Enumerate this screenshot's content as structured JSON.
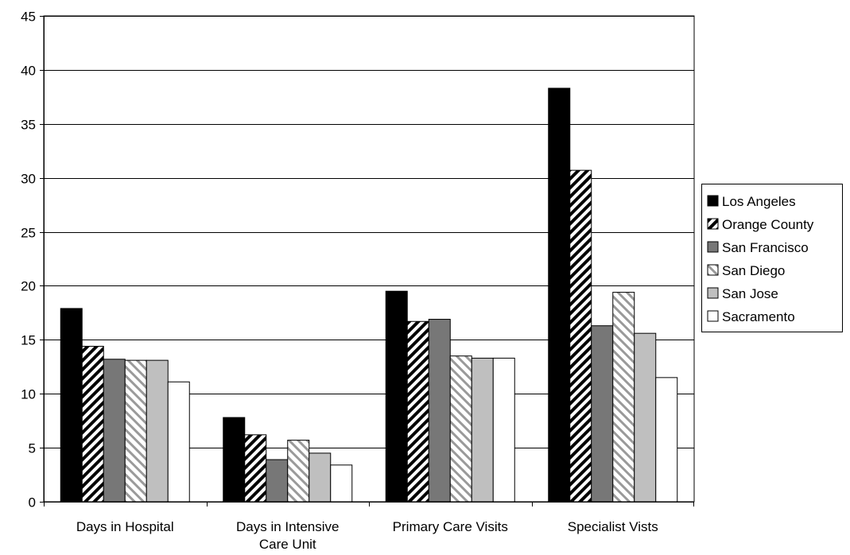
{
  "chart_data": {
    "type": "bar",
    "title": "",
    "xlabel": "",
    "ylabel": "",
    "ylim": [
      0,
      45
    ],
    "ytick_step": 5,
    "yticks": [
      "0",
      "5",
      "10",
      "15",
      "20",
      "25",
      "30",
      "35",
      "40",
      "45"
    ],
    "grid": true,
    "legend_position": "right",
    "categories": [
      [
        "Days in Hospital"
      ],
      [
        "Days in Intensive",
        "Care Unit"
      ],
      [
        "Primary Care Visits"
      ],
      [
        "Specialist Vists"
      ]
    ],
    "series": [
      {
        "name": "Los Angeles",
        "fill": "solid-black",
        "values": [
          17.9,
          7.8,
          19.5,
          38.3
        ]
      },
      {
        "name": "Orange County",
        "fill": "hatch-backward",
        "values": [
          14.4,
          6.2,
          16.7,
          30.7
        ]
      },
      {
        "name": "San Francisco",
        "fill": "solid-gray",
        "values": [
          13.2,
          3.9,
          16.9,
          16.3
        ]
      },
      {
        "name": "San Diego",
        "fill": "hatch-forward",
        "values": [
          13.1,
          5.7,
          13.5,
          19.4
        ]
      },
      {
        "name": "San Jose",
        "fill": "solid-lightgray",
        "values": [
          13.1,
          4.5,
          13.3,
          15.6
        ]
      },
      {
        "name": "Sacramento",
        "fill": "solid-white",
        "values": [
          11.1,
          3.4,
          13.3,
          11.5
        ]
      }
    ]
  },
  "colors": {
    "black": "#000000",
    "gray": "#777777",
    "lightgray": "#bfbfbf",
    "white": "#ffffff",
    "hatch_backward_bg": "#ffffff",
    "hatch_forward_bg": "#ffffff",
    "hatch_forward_line": "#9a9a9a"
  }
}
